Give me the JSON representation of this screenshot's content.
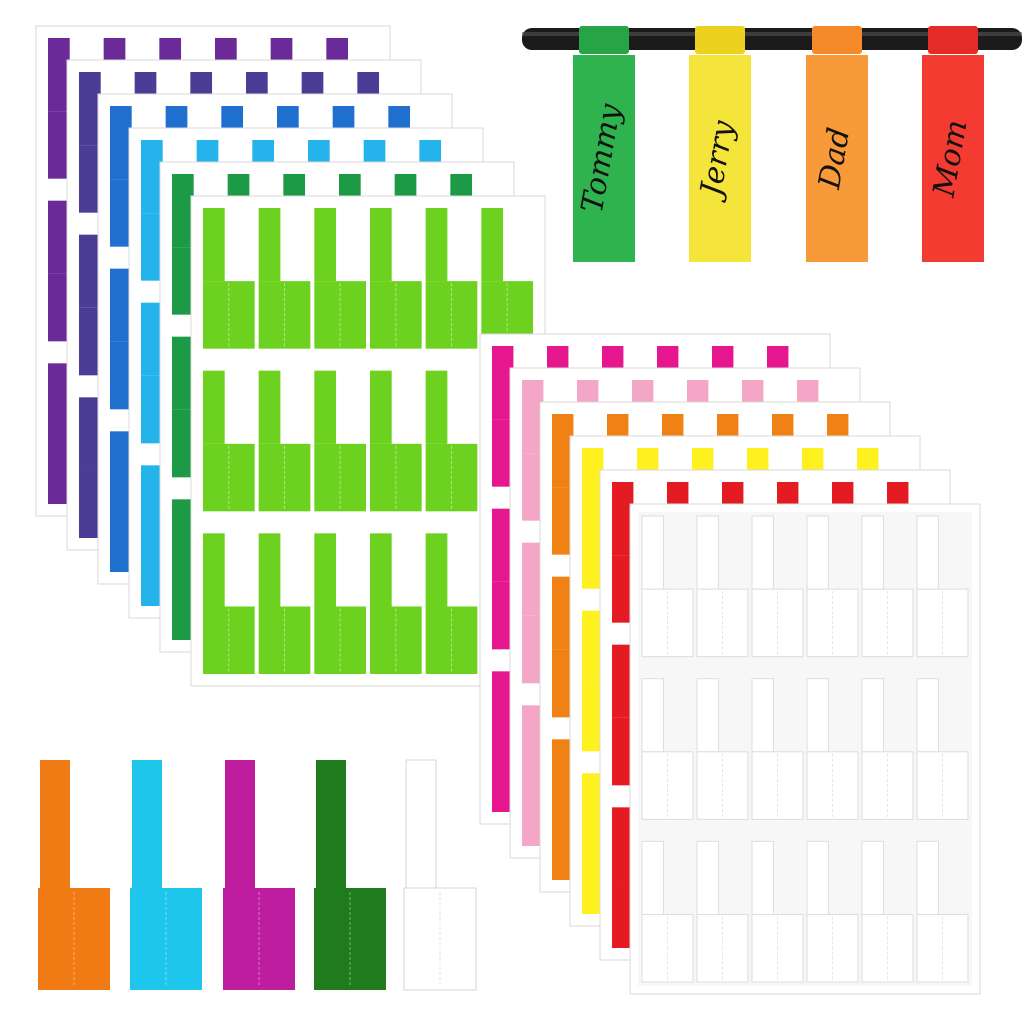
{
  "hanging_tags": [
    {
      "name": "Tommy",
      "color": "#2fb34f",
      "band": "#27a546"
    },
    {
      "name": "Jerry",
      "color": "#f5e43a",
      "band": "#ecd21f"
    },
    {
      "name": "Dad",
      "color": "#f99a3a",
      "band": "#f58a2a"
    },
    {
      "name": "Mom",
      "color": "#f33b32",
      "band": "#e42b25"
    }
  ],
  "left_stack_colors": [
    "#6a2a97",
    "#4b3d96",
    "#1f6fcf",
    "#25b3ec",
    "#1d9a45",
    "#6dd21f"
  ],
  "right_stack_colors": [
    "#e6178e",
    "#f4a6c6",
    "#f08115",
    "#fff020",
    "#e51b23",
    "#ffffff"
  ],
  "loose_label_colors": [
    "#f07b14",
    "#1fc6ec",
    "#bf1da0",
    "#1f7b1c",
    "#ffffff"
  ]
}
